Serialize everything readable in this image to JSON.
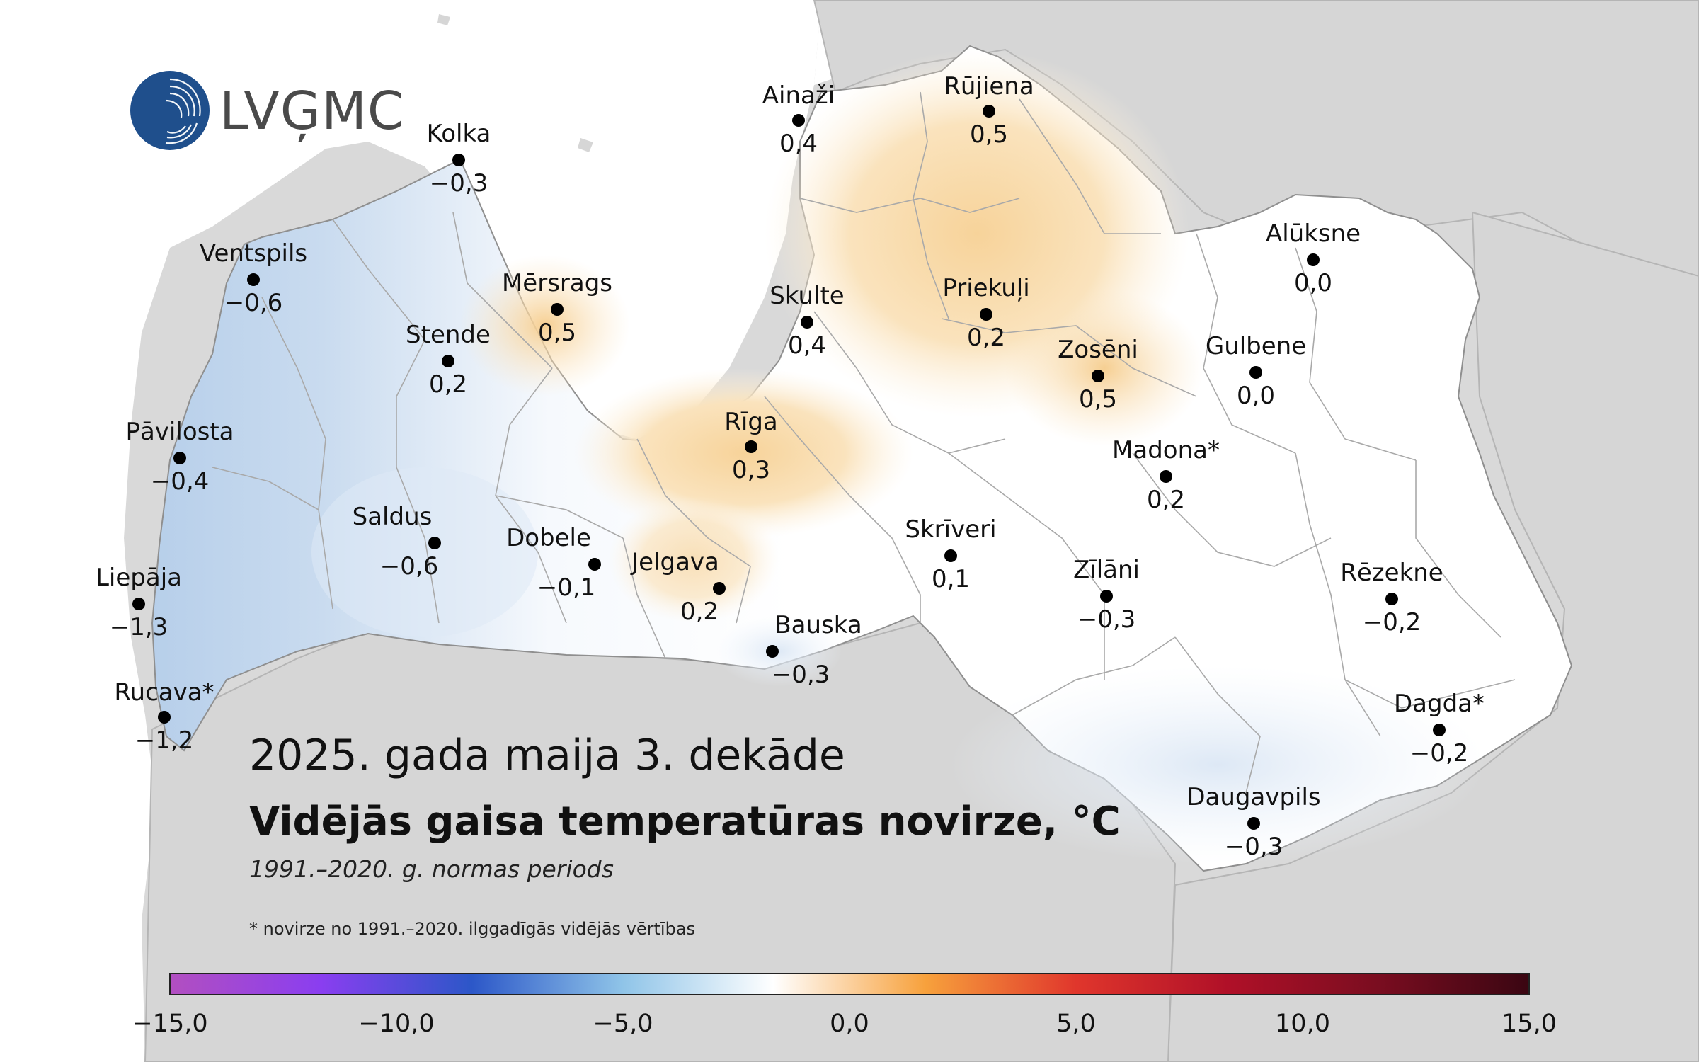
{
  "logo": {
    "text": "LVĢMC"
  },
  "title": {
    "period": "2025. gada maija 3. dekāde",
    "main": "Vidējās gaisa temperatūras novirze, °C",
    "norm": "1991.–2020. g. normas periods"
  },
  "footnote": "* novirze no 1991.–2020. ilggadīgās vidējās vērtības",
  "colorscale": {
    "min": -15,
    "max": 15,
    "ticks": [
      "−15,0",
      "−10,0",
      "−5,0",
      "0,0",
      "5,0",
      "10,0",
      "15,0"
    ],
    "colors": [
      "#b24fc0",
      "#8a3ef0",
      "#2c57c8",
      "#8fc4e8",
      "#ffffff",
      "#f7a13c",
      "#e0362c",
      "#b01028",
      "#7a0d20",
      "#3a0612"
    ]
  },
  "stations": [
    {
      "name": "Ainaži",
      "value": "0,4"
    },
    {
      "name": "Rūjiena",
      "value": "0,5"
    },
    {
      "name": "Kolka",
      "value": "−0,3"
    },
    {
      "name": "Ventspils",
      "value": "−0,6"
    },
    {
      "name": "Mērsrags",
      "value": "0,5"
    },
    {
      "name": "Stende",
      "value": "0,2"
    },
    {
      "name": "Skulte",
      "value": "0,4"
    },
    {
      "name": "Priekuļi",
      "value": "0,2"
    },
    {
      "name": "Alūksne",
      "value": "0,0"
    },
    {
      "name": "Zosēni",
      "value": "0,5"
    },
    {
      "name": "Gulbene",
      "value": "0,0"
    },
    {
      "name": "Pāvilosta",
      "value": "−0,4"
    },
    {
      "name": "Rīga",
      "value": "0,3"
    },
    {
      "name": "Madona*",
      "value": "0,2"
    },
    {
      "name": "Saldus",
      "value": "−0,6"
    },
    {
      "name": "Dobele",
      "value": "−0,1"
    },
    {
      "name": "Skrīveri",
      "value": "0,1"
    },
    {
      "name": "Jelgava",
      "value": "0,2"
    },
    {
      "name": "Zīlāni",
      "value": "−0,3"
    },
    {
      "name": "Rēzekne",
      "value": "−0,2"
    },
    {
      "name": "Liepāja",
      "value": "−1,3"
    },
    {
      "name": "Bauska",
      "value": "−0,3"
    },
    {
      "name": "Rucava*",
      "value": "−1,2"
    },
    {
      "name": "Dagda*",
      "value": "−0,2"
    },
    {
      "name": "Daugavpils",
      "value": "−0,3"
    }
  ]
}
